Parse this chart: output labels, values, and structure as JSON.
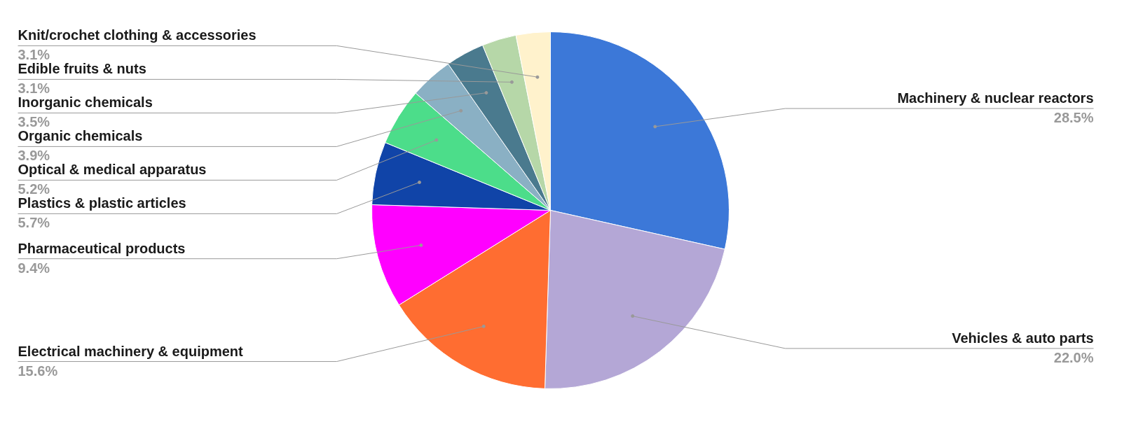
{
  "chart_data": {
    "type": "pie",
    "categories": [
      "Machinery & nuclear reactors",
      "Vehicles & auto parts",
      "Electrical machinery & equipment",
      "Pharmaceutical products",
      "Plastics & plastic articles",
      "Optical & medical apparatus",
      "Organic chemicals",
      "Inorganic chemicals",
      "Edible fruits & nuts",
      "Knit/crochet clothing & accessories"
    ],
    "values": [
      28.5,
      22.0,
      15.6,
      9.4,
      5.7,
      5.2,
      3.9,
      3.5,
      3.1,
      3.1
    ],
    "value_labels": [
      "28.5%",
      "22.0%",
      "15.6%",
      "9.4%",
      "5.7%",
      "5.2%",
      "3.9%",
      "3.5%",
      "3.1%",
      "3.1%"
    ],
    "colors": [
      "#3c78d8",
      "#b4a7d6",
      "#ff6d31",
      "#ff00ff",
      "#1044a8",
      "#4cdd8a",
      "#8ab0c4",
      "#4a7a8e",
      "#b6d7a8",
      "#fff2cc"
    ]
  }
}
